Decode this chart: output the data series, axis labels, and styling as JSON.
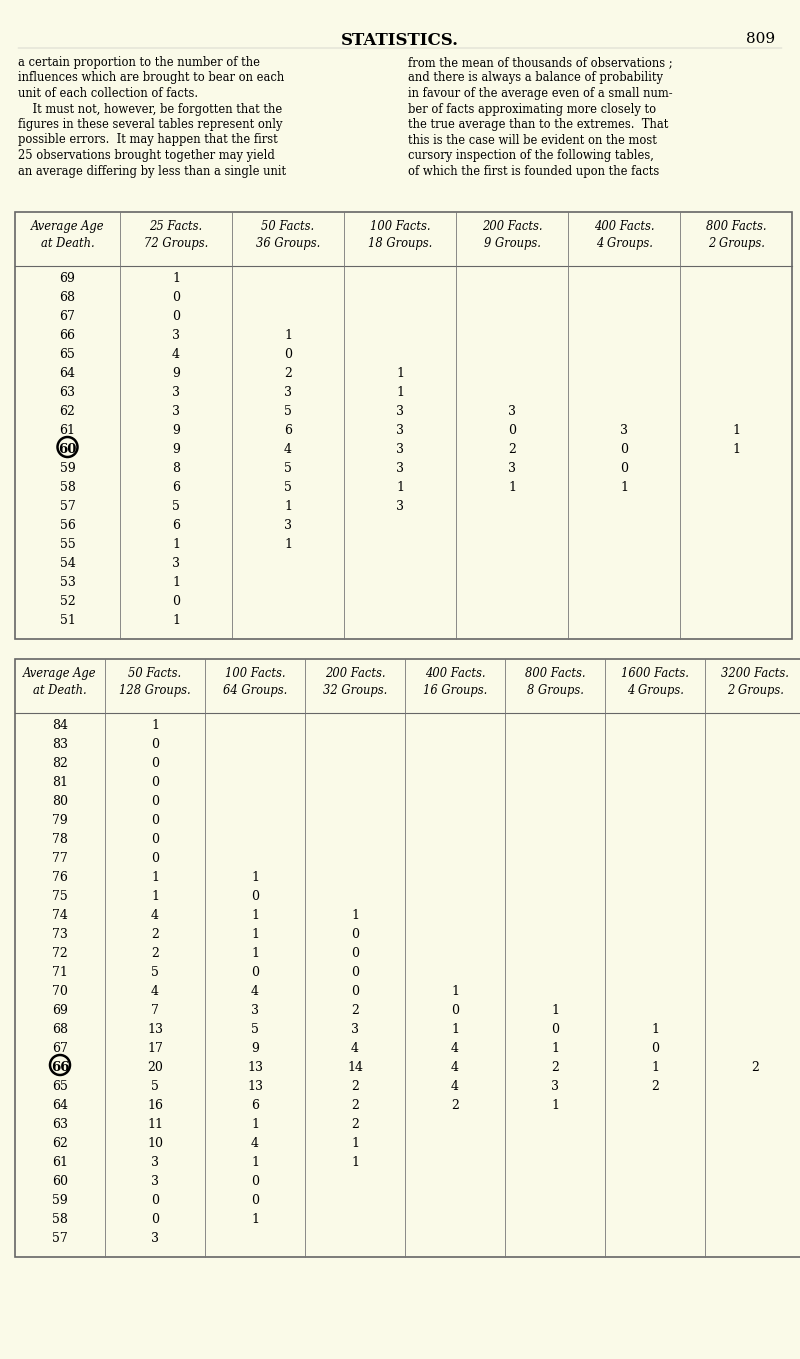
{
  "bg_color": "#fafae8",
  "page_title": "STATISTICS.",
  "page_number": "809",
  "left_lines": [
    "a certain proportion to the number of the",
    "influences which are brought to bear on each",
    "unit of each collection of facts.",
    "    It must not, however, be forgotten that the",
    "figures in these several tables represent only",
    "possible errors.  It may happen that the first",
    "25 observations brought together may yield",
    "an average differing by less than a single unit"
  ],
  "right_lines": [
    "from the mean of thousands of observations ;",
    "and there is always a balance of probability",
    "in favour of the average even of a small num-",
    "ber of facts approximating more closely to",
    "the true average than to the extremes.  That",
    "this is the case will be evident on the most",
    "cursory inspection of the following tables,",
    "of which the first is founded upon the facts"
  ],
  "table1_headers": [
    "Average Age\nat Death.",
    "25 Facts.\n72 Groups.",
    "50 Facts.\n36 Groups.",
    "100 Facts.\n18 Groups.",
    "200 Facts.\n9 Groups.",
    "400 Facts.\n4 Groups.",
    "800 Facts.\n2 Groups."
  ],
  "table1_col_widths": [
    105,
    112,
    112,
    112,
    112,
    112,
    112
  ],
  "table1_rows": [
    [
      "69",
      "1",
      "",
      "",
      "",
      "",
      ""
    ],
    [
      "68",
      "0",
      "",
      "",
      "",
      "",
      ""
    ],
    [
      "67",
      "0",
      "",
      "",
      "",
      "",
      ""
    ],
    [
      "66",
      "3",
      "1",
      "",
      "",
      "",
      ""
    ],
    [
      "65",
      "4",
      "0",
      "",
      "",
      "",
      ""
    ],
    [
      "64",
      "9",
      "2",
      "1",
      "",
      "",
      ""
    ],
    [
      "63",
      "3",
      "3",
      "1",
      "",
      "",
      ""
    ],
    [
      "62",
      "3",
      "5",
      "3",
      "3",
      "",
      ""
    ],
    [
      "61",
      "9",
      "6",
      "3",
      "0",
      "3",
      "1"
    ],
    [
      "60*",
      "9",
      "4",
      "3",
      "2",
      "0",
      "1"
    ],
    [
      "59",
      "8",
      "5",
      "3",
      "3",
      "0",
      ""
    ],
    [
      "58",
      "6",
      "5",
      "1",
      "1",
      "1",
      ""
    ],
    [
      "57",
      "5",
      "1",
      "3",
      "",
      "",
      ""
    ],
    [
      "56",
      "6",
      "3",
      "",
      "",
      "",
      ""
    ],
    [
      "55",
      "1",
      "1",
      "",
      "",
      "",
      ""
    ],
    [
      "54",
      "3",
      "",
      "",
      "",
      "",
      ""
    ],
    [
      "53",
      "1",
      "",
      "",
      "",
      "",
      ""
    ],
    [
      "52",
      "0",
      "",
      "",
      "",
      "",
      ""
    ],
    [
      "51",
      "1",
      "",
      "",
      "",
      "",
      ""
    ]
  ],
  "table2_headers": [
    "Average Age\nat Death.",
    "50 Facts.\n128 Groups.",
    "100 Facts.\n64 Groups.",
    "200 Facts.\n32 Groups.",
    "400 Facts.\n16 Groups.",
    "800 Facts.\n8 Groups.",
    "1600 Facts.\n4 Groups.",
    "3200 Facts.\n2 Groups."
  ],
  "table2_col_widths": [
    90,
    100,
    100,
    100,
    100,
    100,
    100,
    100
  ],
  "table2_rows": [
    [
      "84",
      "1",
      "",
      "",
      "",
      "",
      "",
      ""
    ],
    [
      "83",
      "0",
      "",
      "",
      "",
      "",
      "",
      ""
    ],
    [
      "82",
      "0",
      "",
      "",
      "",
      "",
      "",
      ""
    ],
    [
      "81",
      "0",
      "",
      "",
      "",
      "",
      "",
      ""
    ],
    [
      "80",
      "0",
      "",
      "",
      "",
      "",
      "",
      ""
    ],
    [
      "79",
      "0",
      "",
      "",
      "",
      "",
      "",
      ""
    ],
    [
      "78",
      "0",
      "",
      "",
      "",
      "",
      "",
      ""
    ],
    [
      "77",
      "0",
      "",
      "",
      "",
      "",
      "",
      ""
    ],
    [
      "76",
      "1",
      "1",
      "",
      "",
      "",
      "",
      ""
    ],
    [
      "75",
      "1",
      "0",
      "",
      "",
      "",
      "",
      ""
    ],
    [
      "74",
      "4",
      "1",
      "1",
      "",
      "",
      "",
      ""
    ],
    [
      "73",
      "2",
      "1",
      "0",
      "",
      "",
      "",
      ""
    ],
    [
      "72",
      "2",
      "1",
      "0",
      "",
      "",
      "",
      ""
    ],
    [
      "71",
      "5",
      "0",
      "0",
      "",
      "",
      "",
      ""
    ],
    [
      "70",
      "4",
      "4",
      "0",
      "1",
      "",
      "",
      ""
    ],
    [
      "69",
      "7",
      "3",
      "2",
      "0",
      "1",
      "",
      ""
    ],
    [
      "68",
      "13",
      "5",
      "3",
      "1",
      "0",
      "1",
      ""
    ],
    [
      "67",
      "17",
      "9",
      "4",
      "4",
      "1",
      "0",
      ""
    ],
    [
      "66*",
      "20",
      "13",
      "14",
      "4",
      "2",
      "1",
      "2"
    ],
    [
      "65",
      "5",
      "13",
      "2",
      "4",
      "3",
      "2",
      ""
    ],
    [
      "64",
      "16",
      "6",
      "2",
      "2",
      "1",
      "",
      ""
    ],
    [
      "63",
      "11",
      "1",
      "2",
      "",
      "",
      "",
      ""
    ],
    [
      "62",
      "10",
      "4",
      "1",
      "",
      "",
      "",
      ""
    ],
    [
      "61",
      "3",
      "1",
      "1",
      "",
      "",
      "",
      ""
    ],
    [
      "60",
      "3",
      "0",
      "",
      "",
      "",
      "",
      ""
    ],
    [
      "59",
      "0",
      "0",
      "",
      "",
      "",
      "",
      ""
    ],
    [
      "58",
      "0",
      "1",
      "",
      "",
      "",
      "",
      ""
    ],
    [
      "57",
      "3",
      "",
      "",
      "",
      "",
      "",
      ""
    ]
  ]
}
